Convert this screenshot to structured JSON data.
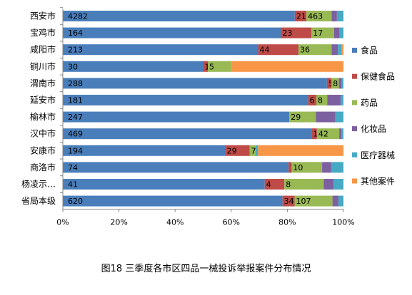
{
  "chart_data": {
    "type": "bar",
    "orientation": "horizontal",
    "stacking": "percent",
    "categories": [
      "西安市",
      "宝鸡市",
      "咸阳市",
      "铜川市",
      "渭南市",
      "延安市",
      "榆林市",
      "汉中市",
      "安康市",
      "商洛市",
      "杨凌示…",
      "省局本级"
    ],
    "series": [
      {
        "name": "食品",
        "color": "#4a7ebb",
        "values": [
          4282,
          164,
          213,
          30,
          288,
          181,
          247,
          469,
          194,
          74,
          41,
          620
        ],
        "labels": [
          "4282",
          "164",
          "213",
          "30",
          "288",
          "181",
          "247",
          "469",
          "194",
          "74",
          "41",
          "620"
        ]
      },
      {
        "name": "保健食品",
        "color": "#be4b48",
        "values": [
          215,
          23,
          44,
          1,
          5,
          6,
          0,
          10,
          29,
          1,
          4,
          34
        ],
        "labels": [
          "215",
          "23",
          "44",
          "1",
          "5",
          "6",
          "",
          "10",
          "29",
          "1",
          "4",
          "34"
        ]
      },
      {
        "name": "药品",
        "color": "#98b954",
        "values": [
          463,
          17,
          36,
          5,
          8,
          8,
          29,
          42,
          7,
          10,
          8,
          107
        ],
        "labels": [
          "463",
          "17",
          "36",
          "5",
          "8",
          "8",
          "29",
          "42",
          "7",
          "10",
          "8",
          "107"
        ]
      },
      {
        "name": "化妆品",
        "color": "#7d60a0",
        "values": [
          100,
          4,
          7,
          0,
          3,
          10,
          21,
          4,
          0,
          3,
          2,
          17
        ],
        "labels": [
          "",
          "",
          "",
          "",
          "",
          "",
          "",
          "",
          "",
          "",
          "",
          ""
        ]
      },
      {
        "name": "医疗器械",
        "color": "#46aac5",
        "values": [
          120,
          3,
          4,
          0,
          2,
          2,
          9,
          4,
          3,
          4,
          2,
          14
        ],
        "labels": [
          "",
          "",
          "",
          "",
          "",
          "",
          "",
          "",
          "",
          "",
          "",
          ""
        ]
      },
      {
        "name": "其他案件",
        "color": "#f79646",
        "values": [
          0,
          0,
          2,
          24,
          0,
          0,
          0,
          0,
          102,
          0,
          0,
          0
        ],
        "labels": [
          "",
          "",
          "",
          "",
          "",
          "",
          "",
          "",
          "",
          "",
          "",
          ""
        ]
      }
    ],
    "xticks": [
      "0%",
      "20%",
      "40%",
      "60%",
      "80%",
      "100%"
    ],
    "xlim": [
      0,
      100
    ],
    "grid": false,
    "legend": "right"
  },
  "caption": "图18   三季度各市区四品一械投诉举报案件分布情况"
}
